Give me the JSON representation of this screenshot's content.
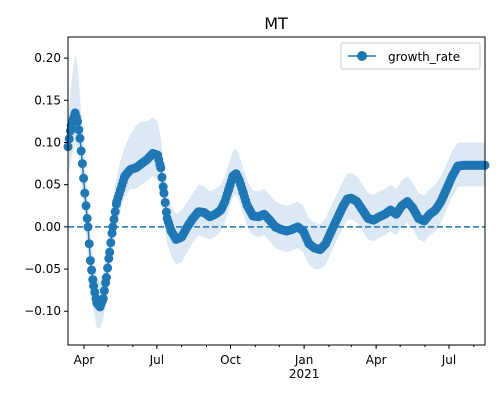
{
  "chart_data": {
    "type": "line",
    "title": "MT",
    "xlabel": "",
    "ylabel": "",
    "x_tick_labels": [
      "Apr",
      "Jul",
      "Oct",
      "Jan\n2021",
      "Apr",
      "Jul"
    ],
    "x_ticks": [
      "2020-04-01",
      "2020-07-01",
      "2020-10-01",
      "2021-01-01",
      "2021-04-01",
      "2021-07-01"
    ],
    "x_range": [
      "2020-03-12",
      "2021-08-15"
    ],
    "ylim": [
      -0.14,
      0.225
    ],
    "y_ticks": [
      -0.1,
      -0.05,
      0.0,
      0.05,
      0.1,
      0.15,
      0.2
    ],
    "y_tick_labels": [
      "−0.10",
      "−0.05",
      "0.00",
      "0.05",
      "0.10",
      "0.15",
      "0.20"
    ],
    "reference_line": {
      "y": 0,
      "style": "dashed"
    },
    "legend": {
      "position": "top-right",
      "entries": [
        "growth_rate"
      ]
    },
    "colors": {
      "series": "#1f77b4",
      "band": "#dce8f4"
    },
    "series": [
      {
        "name": "growth_rate",
        "marker": "circle",
        "x": [
          "2020-03-12",
          "2020-03-16",
          "2020-03-21",
          "2020-03-24",
          "2020-03-27",
          "2020-03-30",
          "2020-04-02",
          "2020-04-06",
          "2020-04-09",
          "2020-04-13",
          "2020-04-17",
          "2020-04-21",
          "2020-04-25",
          "2020-04-29",
          "2020-05-03",
          "2020-05-07",
          "2020-05-12",
          "2020-05-17",
          "2020-05-22",
          "2020-05-29",
          "2020-06-05",
          "2020-06-12",
          "2020-06-19",
          "2020-06-26",
          "2020-07-02",
          "2020-07-06",
          "2020-07-10",
          "2020-07-14",
          "2020-07-19",
          "2020-07-25",
          "2020-08-01",
          "2020-08-08",
          "2020-08-15",
          "2020-08-22",
          "2020-08-29",
          "2020-09-05",
          "2020-09-12",
          "2020-09-19",
          "2020-09-24",
          "2020-09-29",
          "2020-10-04",
          "2020-10-08",
          "2020-10-12",
          "2020-10-17",
          "2020-10-22",
          "2020-10-29",
          "2020-11-05",
          "2020-11-12",
          "2020-11-19",
          "2020-11-26",
          "2020-12-03",
          "2020-12-10",
          "2020-12-17",
          "2020-12-24",
          "2020-12-31",
          "2021-01-07",
          "2021-01-14",
          "2021-01-21",
          "2021-01-28",
          "2021-02-04",
          "2021-02-09",
          "2021-02-14",
          "2021-02-19",
          "2021-02-24",
          "2021-03-01",
          "2021-03-08",
          "2021-03-15",
          "2021-03-22",
          "2021-03-29",
          "2021-04-05",
          "2021-04-12",
          "2021-04-19",
          "2021-04-26",
          "2021-05-03",
          "2021-05-10",
          "2021-05-17",
          "2021-05-24",
          "2021-05-31",
          "2021-06-07",
          "2021-06-14",
          "2021-06-21",
          "2021-06-28",
          "2021-07-05",
          "2021-07-12",
          "2021-07-19",
          "2021-07-26",
          "2021-08-02",
          "2021-08-09",
          "2021-08-15"
        ],
        "values": [
          0.095,
          0.12,
          0.135,
          0.125,
          0.105,
          0.075,
          0.04,
          0.0,
          -0.04,
          -0.07,
          -0.09,
          -0.095,
          -0.085,
          -0.06,
          -0.03,
          0.0,
          0.03,
          0.045,
          0.06,
          0.068,
          0.07,
          0.075,
          0.08,
          0.087,
          0.085,
          0.07,
          0.04,
          0.01,
          -0.005,
          -0.015,
          -0.012,
          0.0,
          0.01,
          0.018,
          0.017,
          0.012,
          0.015,
          0.02,
          0.03,
          0.045,
          0.06,
          0.063,
          0.055,
          0.04,
          0.025,
          0.013,
          0.012,
          0.015,
          0.008,
          0.0,
          -0.003,
          -0.005,
          -0.003,
          0.0,
          -0.005,
          -0.02,
          -0.025,
          -0.027,
          -0.02,
          -0.005,
          0.005,
          0.015,
          0.025,
          0.033,
          0.034,
          0.03,
          0.02,
          0.01,
          0.008,
          0.012,
          0.015,
          0.02,
          0.015,
          0.025,
          0.03,
          0.022,
          0.01,
          0.007,
          0.015,
          0.02,
          0.03,
          0.045,
          0.06,
          0.072,
          0.073,
          0.073,
          0.073,
          0.073,
          0.073
        ],
        "band_lower": [
          0.06,
          0.08,
          0.1,
          0.09,
          0.07,
          0.04,
          0.005,
          -0.035,
          -0.075,
          -0.1,
          -0.12,
          -0.12,
          -0.11,
          -0.085,
          -0.055,
          -0.025,
          0.005,
          0.02,
          0.035,
          0.045,
          0.045,
          0.05,
          0.055,
          0.06,
          0.055,
          0.035,
          0.005,
          -0.02,
          -0.035,
          -0.045,
          -0.042,
          -0.03,
          -0.018,
          -0.01,
          -0.012,
          -0.015,
          -0.012,
          -0.005,
          0.005,
          0.02,
          0.035,
          0.038,
          0.03,
          0.015,
          0.0,
          -0.01,
          -0.012,
          -0.01,
          -0.017,
          -0.025,
          -0.028,
          -0.03,
          -0.028,
          -0.025,
          -0.03,
          -0.045,
          -0.05,
          -0.05,
          -0.045,
          -0.03,
          -0.02,
          -0.01,
          0.0,
          0.008,
          0.009,
          0.005,
          -0.005,
          -0.015,
          -0.017,
          -0.013,
          -0.01,
          -0.005,
          -0.01,
          0.0,
          0.005,
          -0.003,
          -0.015,
          -0.018,
          -0.01,
          -0.005,
          0.005,
          0.02,
          0.035,
          0.047,
          0.048,
          0.048,
          0.048,
          0.048,
          0.048
        ],
        "band_upper": [
          0.13,
          0.17,
          0.205,
          0.19,
          0.155,
          0.115,
          0.075,
          0.03,
          -0.01,
          -0.04,
          -0.06,
          -0.065,
          -0.055,
          -0.03,
          0.0,
          0.03,
          0.06,
          0.08,
          0.095,
          0.11,
          0.12,
          0.125,
          0.125,
          0.13,
          0.125,
          0.105,
          0.07,
          0.04,
          0.025,
          0.015,
          0.02,
          0.03,
          0.04,
          0.05,
          0.048,
          0.042,
          0.045,
          0.05,
          0.06,
          0.075,
          0.09,
          0.093,
          0.085,
          0.07,
          0.055,
          0.043,
          0.042,
          0.045,
          0.038,
          0.03,
          0.027,
          0.025,
          0.027,
          0.03,
          0.025,
          0.01,
          0.005,
          0.003,
          0.01,
          0.025,
          0.035,
          0.045,
          0.055,
          0.063,
          0.064,
          0.06,
          0.05,
          0.04,
          0.038,
          0.042,
          0.045,
          0.05,
          0.045,
          0.055,
          0.06,
          0.052,
          0.04,
          0.037,
          0.045,
          0.05,
          0.06,
          0.075,
          0.09,
          0.1,
          0.1,
          0.1,
          0.1,
          0.1,
          0.1
        ]
      }
    ]
  }
}
